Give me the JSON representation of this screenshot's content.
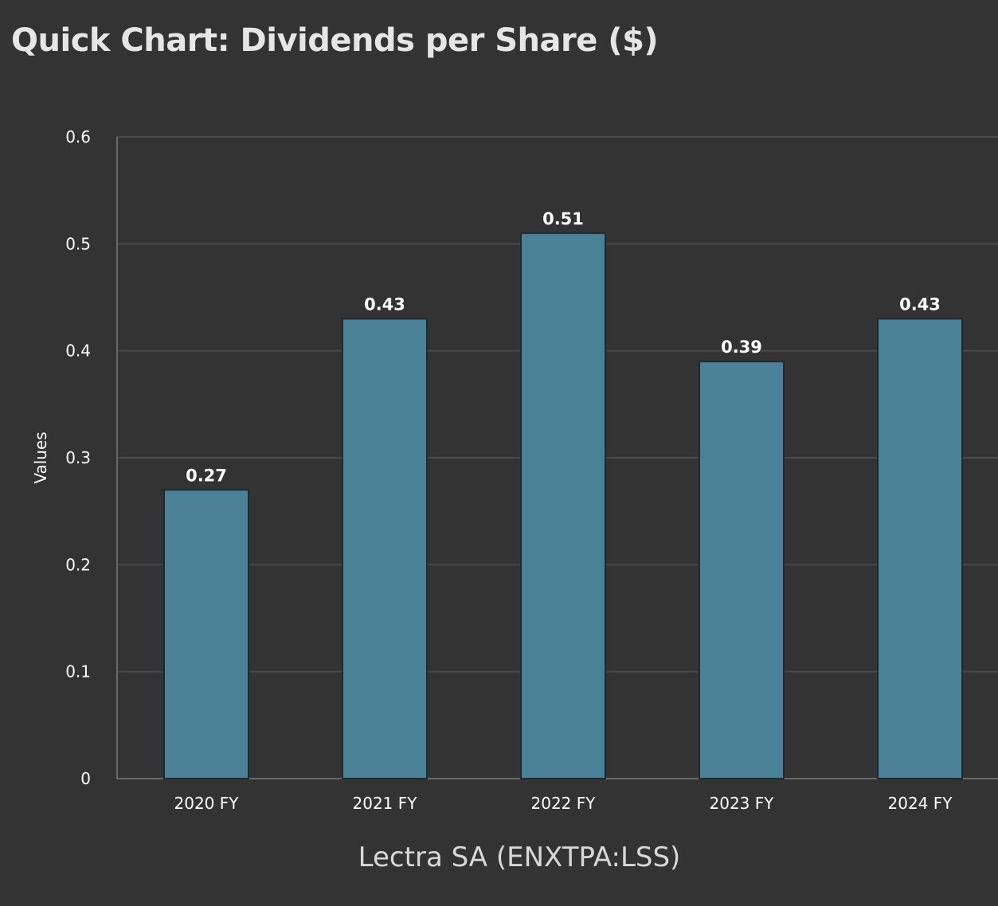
{
  "title": "Quick Chart: Dividends per Share ($)",
  "colors": {
    "background": "#333333",
    "bar_fill": "#4a8197",
    "bar_stroke": "#1e2a30",
    "grid": "#4a4a4a",
    "axis": "#6a6a6a"
  },
  "chart_data": {
    "type": "bar",
    "title": "Quick Chart: Dividends per Share ($)",
    "categories": [
      "2020 FY",
      "2021 FY",
      "2022 FY",
      "2023 FY",
      "2024 FY"
    ],
    "values": [
      0.27,
      0.43,
      0.51,
      0.39,
      0.43
    ],
    "data_labels": [
      "0.27",
      "0.43",
      "0.51",
      "0.39",
      "0.43"
    ],
    "xlabel": "Lectra SA (ENXTPA:LSS)",
    "ylabel": "Values",
    "ylim": [
      0,
      0.6
    ],
    "yticks": [
      0,
      0.1,
      0.2,
      0.3,
      0.4,
      0.5,
      0.6
    ],
    "ytick_labels": [
      "0",
      "0.1",
      "0.2",
      "0.3",
      "0.4",
      "0.5",
      "0.6"
    ],
    "grid": true,
    "legend": "none"
  }
}
